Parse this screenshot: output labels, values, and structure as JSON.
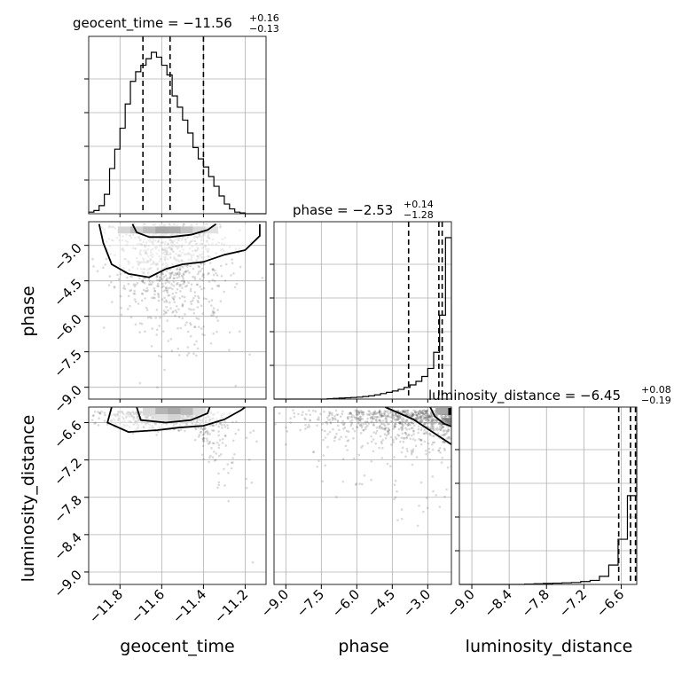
{
  "chart_data": {
    "type": "corner",
    "parameters": [
      {
        "name": "geocent_time",
        "axis_label": "geocent_time",
        "range": [
          -11.95,
          -11.1
        ],
        "ticks": [
          -11.8,
          -11.6,
          -11.4,
          -11.2
        ],
        "tick_labels": [
          "−11.8",
          "−11.6",
          "−11.4",
          "−11.2"
        ],
        "title": {
          "prefix": "geocent_time = −11.56",
          "plus": "+0.16",
          "minus": "−0.13"
        },
        "quantiles": [
          -11.69,
          -11.56,
          -11.4
        ],
        "hist": {
          "edges": [
            -11.95,
            -11.925,
            -11.9,
            -11.875,
            -11.85,
            -11.825,
            -11.8,
            -11.775,
            -11.75,
            -11.725,
            -11.7,
            -11.675,
            -11.65,
            -11.625,
            -11.6,
            -11.575,
            -11.55,
            -11.525,
            -11.5,
            -11.475,
            -11.45,
            -11.425,
            -11.4,
            -11.375,
            -11.35,
            -11.325,
            -11.3,
            -11.275,
            -11.25,
            -11.225,
            -11.2,
            -11.175,
            -11.15,
            -11.125,
            -11.1
          ],
          "counts": [
            0.01,
            0.02,
            0.05,
            0.12,
            0.28,
            0.4,
            0.53,
            0.68,
            0.82,
            0.88,
            0.92,
            0.96,
            1.0,
            0.97,
            0.92,
            0.86,
            0.73,
            0.66,
            0.58,
            0.5,
            0.41,
            0.34,
            0.29,
            0.23,
            0.17,
            0.11,
            0.06,
            0.03,
            0.01,
            0.005,
            0.0,
            0.0,
            0.0,
            0.0
          ]
        }
      },
      {
        "name": "phase",
        "axis_label": "phase",
        "range": [
          -9.5,
          -2.0
        ],
        "ticks": [
          -9.0,
          -7.5,
          -6.0,
          -4.5,
          -3.0
        ],
        "tick_labels": [
          "−9.0",
          "−7.5",
          "−6.0",
          "−4.5",
          "−3.0"
        ],
        "title": {
          "prefix": "phase = −2.53",
          "plus": "+0.14",
          "minus": "−1.28"
        },
        "quantiles": [
          -3.81,
          -2.53,
          -2.39
        ],
        "hist": {
          "edges": [
            -9.5,
            -9.25,
            -9.0,
            -8.75,
            -8.5,
            -8.25,
            -8.0,
            -7.75,
            -7.5,
            -7.25,
            -7.0,
            -6.75,
            -6.5,
            -6.25,
            -6.0,
            -5.75,
            -5.5,
            -5.25,
            -5.0,
            -4.75,
            -4.5,
            -4.25,
            -4.0,
            -3.75,
            -3.5,
            -3.25,
            -3.0,
            -2.75,
            -2.5,
            -2.25,
            -2.0
          ],
          "counts": [
            0,
            0,
            0,
            0,
            0,
            0,
            0,
            0,
            0,
            0.002,
            0.004,
            0.006,
            0.008,
            0.01,
            0.012,
            0.016,
            0.02,
            0.026,
            0.034,
            0.042,
            0.05,
            0.06,
            0.072,
            0.088,
            0.11,
            0.14,
            0.19,
            0.29,
            0.52,
            1.0
          ]
        }
      },
      {
        "name": "luminosity_distance",
        "axis_label": "luminosity_distance",
        "range": [
          -9.2,
          -6.35
        ],
        "ticks": [
          -9.0,
          -8.4,
          -7.8,
          -7.2,
          -6.6
        ],
        "tick_labels": [
          "−9.0",
          "−8.4",
          "−7.8",
          "−7.2",
          "−6.6"
        ],
        "title": {
          "prefix": "luminosity_distance = −6.45",
          "plus": "+0.08",
          "minus": "−0.19"
        },
        "quantiles": [
          -6.64,
          -6.45,
          -6.37
        ],
        "hist": {
          "edges": [
            -9.2,
            -9.05,
            -8.9,
            -8.75,
            -8.6,
            -8.45,
            -8.3,
            -8.15,
            -8.0,
            -7.85,
            -7.7,
            -7.55,
            -7.4,
            -7.25,
            -7.1,
            -6.95,
            -6.8,
            -6.65,
            -6.5,
            -6.35
          ],
          "counts": [
            0,
            0,
            0,
            0,
            0,
            0,
            0,
            0.002,
            0.004,
            0.006,
            0.008,
            0.01,
            0.012,
            0.018,
            0.025,
            0.05,
            0.12,
            0.28,
            0.55,
            1.0
          ]
        }
      }
    ],
    "pairs": [
      {
        "x": "geocent_time",
        "y": "phase",
        "bin_grid": {
          "x": [
            -11.95,
            -11.1
          ],
          "y": [
            -9.5,
            -2.0
          ]
        },
        "dense_cells": [
          [
            -11.78,
            -2.35,
            0.35
          ],
          [
            -11.72,
            -2.35,
            0.55
          ],
          [
            -11.66,
            -2.35,
            0.75
          ],
          [
            -11.6,
            -2.35,
            1.0
          ],
          [
            -11.54,
            -2.35,
            0.95
          ],
          [
            -11.48,
            -2.35,
            0.7
          ],
          [
            -11.42,
            -2.35,
            0.45
          ],
          [
            -11.36,
            -2.35,
            0.25
          ]
        ],
        "contours": [
          [
            [
              -11.9,
              -2.1
            ],
            [
              -11.88,
              -2.9
            ],
            [
              -11.84,
              -3.8
            ],
            [
              -11.76,
              -4.2
            ],
            [
              -11.66,
              -4.35
            ],
            [
              -11.58,
              -4.0
            ],
            [
              -11.5,
              -3.8
            ],
            [
              -11.4,
              -3.7
            ],
            [
              -11.3,
              -3.4
            ],
            [
              -11.2,
              -3.2
            ],
            [
              -11.13,
              -2.6
            ],
            [
              -11.13,
              -2.1
            ]
          ],
          [
            [
              -11.74,
              -2.1
            ],
            [
              -11.72,
              -2.45
            ],
            [
              -11.66,
              -2.65
            ],
            [
              -11.56,
              -2.65
            ],
            [
              -11.46,
              -2.55
            ],
            [
              -11.38,
              -2.35
            ],
            [
              -11.34,
              -2.1
            ]
          ]
        ]
      },
      {
        "x": "geocent_time",
        "y": "luminosity_distance",
        "bin_grid": {
          "x": [
            -11.95,
            -11.1
          ],
          "y": [
            -9.2,
            -6.35
          ]
        },
        "dense_cells": [
          [
            -11.66,
            -6.42,
            0.45
          ],
          [
            -11.6,
            -6.42,
            0.85
          ],
          [
            -11.54,
            -6.42,
            1.0
          ],
          [
            -11.48,
            -6.42,
            0.8
          ],
          [
            -11.42,
            -6.42,
            0.4
          ],
          [
            -11.6,
            -6.52,
            0.35
          ],
          [
            -11.54,
            -6.52,
            0.5
          ]
        ],
        "contours": [
          [
            [
              -11.84,
              -6.35
            ],
            [
              -11.86,
              -6.6
            ],
            [
              -11.76,
              -6.75
            ],
            [
              -11.62,
              -6.72
            ],
            [
              -11.52,
              -6.68
            ],
            [
              -11.4,
              -6.65
            ],
            [
              -11.3,
              -6.55
            ],
            [
              -11.22,
              -6.4
            ],
            [
              -11.2,
              -6.35
            ]
          ],
          [
            [
              -11.72,
              -6.35
            ],
            [
              -11.7,
              -6.56
            ],
            [
              -11.58,
              -6.6
            ],
            [
              -11.46,
              -6.56
            ],
            [
              -11.38,
              -6.45
            ],
            [
              -11.37,
              -6.35
            ]
          ]
        ]
      },
      {
        "x": "phase",
        "y": "luminosity_distance",
        "bin_grid": {
          "x": [
            -9.5,
            -2.0
          ],
          "y": [
            -9.2,
            -6.35
          ]
        },
        "dense_cells": [
          [
            -2.15,
            -6.42,
            1.0
          ],
          [
            -2.15,
            -6.58,
            0.5
          ],
          [
            -2.4,
            -6.42,
            0.35
          ]
        ],
        "contours": [
          [
            [
              -4.8,
              -6.35
            ],
            [
              -4.2,
              -6.45
            ],
            [
              -3.6,
              -6.55
            ],
            [
              -3.0,
              -6.7
            ],
            [
              -2.4,
              -6.85
            ],
            [
              -2.0,
              -6.95
            ]
          ],
          [
            [
              -2.9,
              -6.35
            ],
            [
              -2.7,
              -6.5
            ],
            [
              -2.3,
              -6.62
            ],
            [
              -2.0,
              -6.66
            ]
          ]
        ]
      }
    ]
  }
}
